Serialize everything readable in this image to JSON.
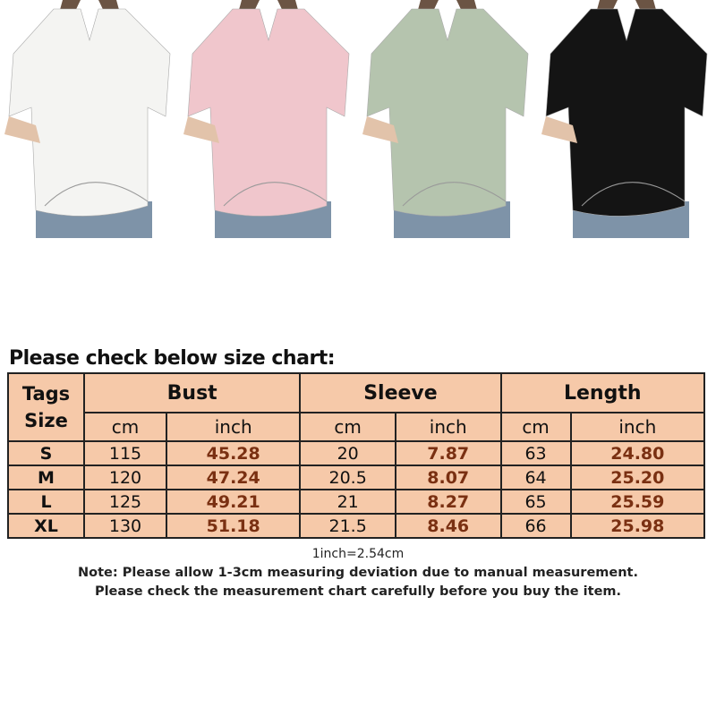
{
  "products": [
    {
      "color_name": "white",
      "color": "#f4f4f2"
    },
    {
      "color_name": "pink",
      "color": "#f0c6cc"
    },
    {
      "color_name": "green",
      "color": "#b5c4ae"
    },
    {
      "color_name": "black",
      "color": "#141414"
    }
  ],
  "size_chart": {
    "title": "Please check below size chart:",
    "tags_header": "Tags",
    "size_header": "Size",
    "groups": [
      "Bust",
      "Sleeve",
      "Length"
    ],
    "units": [
      "cm",
      "inch",
      "cm",
      "inch",
      "cm",
      "inch"
    ],
    "rows": [
      {
        "size": "S",
        "values": [
          "115",
          "45.28",
          "20",
          "7.87",
          "63",
          "24.80"
        ]
      },
      {
        "size": "M",
        "values": [
          "120",
          "47.24",
          "20.5",
          "8.07",
          "64",
          "25.20"
        ]
      },
      {
        "size": "L",
        "values": [
          "125",
          "49.21",
          "21",
          "8.27",
          "65",
          "25.59"
        ]
      },
      {
        "size": "XL",
        "values": [
          "130",
          "51.18",
          "21.5",
          "8.46",
          "66",
          "25.98"
        ]
      }
    ],
    "fill_color": "#f6c9a9",
    "inch_color": "#7a3012"
  },
  "notes": {
    "conversion": "1inch=2.54cm",
    "line1": "Note: Please allow 1-3cm measuring deviation due to manual measurement.",
    "line2": "Please check the measurement chart carefully before you buy the item."
  }
}
